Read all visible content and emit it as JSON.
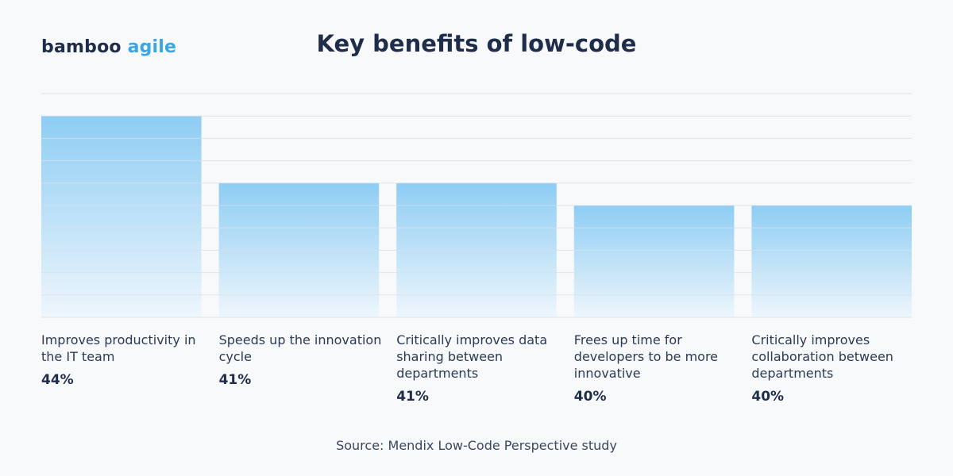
{
  "logo": {
    "word": "bamboo",
    "accent": "agile"
  },
  "chart_data": {
    "type": "bar",
    "title": "Key benefits of low-code",
    "categories": [
      "Improves productivity in the IT team",
      "Speeds up the innovation cycle",
      "Critically improves data sharing between departments",
      "Frees up time for developers to be more innovative",
      "Critically improves collaboration between departments"
    ],
    "values": [
      44,
      41,
      41,
      40,
      40
    ],
    "value_labels": [
      "44%",
      "41%",
      "41%",
      "40%",
      "40%"
    ],
    "xlabel": "",
    "ylabel": "",
    "ylim": [
      35,
      45
    ],
    "grid": true,
    "colors": {
      "bar_top": "#8ecdf3",
      "bar_bottom": "#eef6fc",
      "grid": "#d7e0ea"
    }
  },
  "source": "Source: Mendix Low-Code Perspective study"
}
